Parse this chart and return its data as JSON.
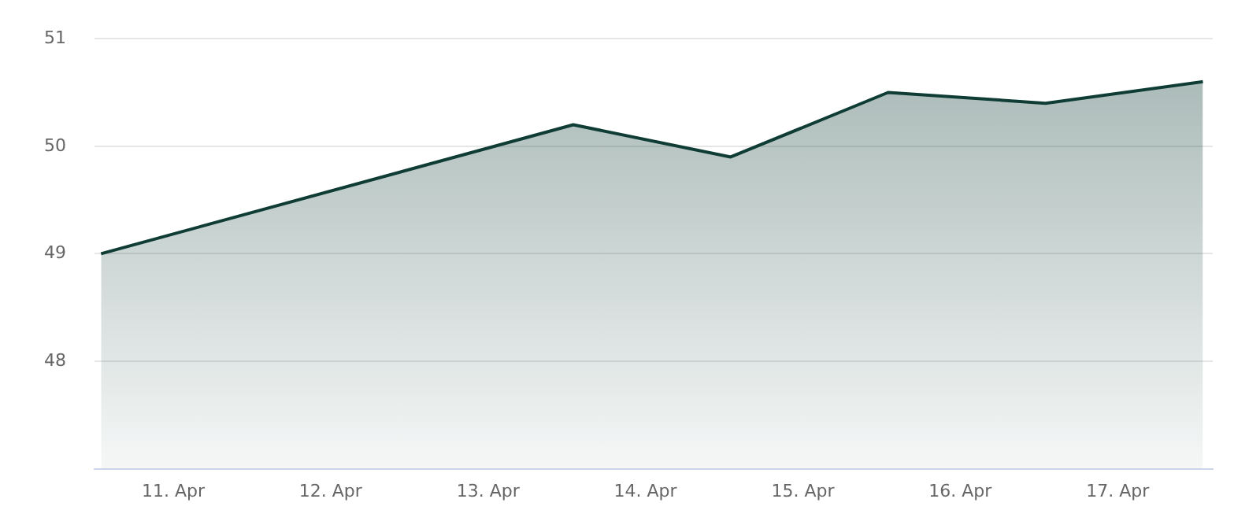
{
  "chart_data": {
    "type": "area",
    "x": [
      "--04-10T13:00",
      "--04-13T13:00",
      "--04-14T13:00",
      "--04-15T13:00",
      "--04-16T13:00",
      "--04-17T13:00"
    ],
    "series": [
      {
        "color": "#0f3d35",
        "values": [
          49.0,
          50.2,
          49.9,
          50.5,
          50.4,
          50.6
        ]
      }
    ],
    "xlim": [
      "--04-10T12:00",
      "--04-17T14:30"
    ],
    "xticks": [
      {
        "value": "--04-11",
        "label": "11. Apr"
      },
      {
        "value": "--04-12",
        "label": "12. Apr"
      },
      {
        "value": "--04-13",
        "label": "13. Apr"
      },
      {
        "value": "--04-14",
        "label": "14. Apr"
      },
      {
        "value": "--04-15",
        "label": "15. Apr"
      },
      {
        "value": "--04-16",
        "label": "16. Apr"
      },
      {
        "value": "--04-17",
        "label": "17. Apr"
      }
    ],
    "ylim": [
      47,
      51
    ],
    "yticks": [
      48,
      49,
      50,
      51
    ],
    "grid": "y",
    "legend": false
  }
}
